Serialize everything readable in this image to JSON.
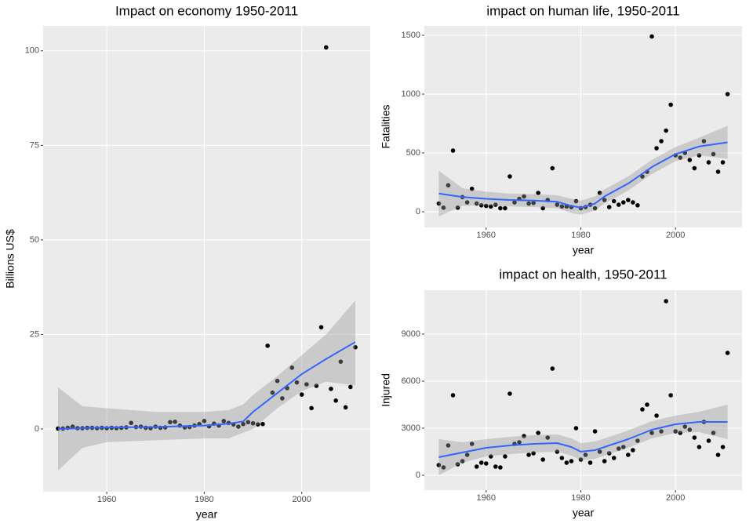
{
  "chart_data": [
    {
      "type": "scatter",
      "title": "Impact on economy 1950-2011",
      "x_label": "year",
      "y_label": "Billions US$",
      "xlim": [
        1946.95,
        2014.05
      ],
      "ylim": [
        -16.6,
        106.6
      ],
      "xticks": [
        1960,
        1980,
        2000
      ],
      "yticks": [
        0,
        25,
        50,
        75,
        100
      ],
      "grid": true,
      "color": "#000000",
      "x": [
        1950,
        1951,
        1952,
        1953,
        1954,
        1955,
        1956,
        1957,
        1958,
        1959,
        1960,
        1961,
        1962,
        1963,
        1964,
        1965,
        1966,
        1967,
        1968,
        1969,
        1970,
        1971,
        1972,
        1973,
        1974,
        1975,
        1976,
        1977,
        1978,
        1979,
        1980,
        1981,
        1982,
        1983,
        1984,
        1985,
        1986,
        1987,
        1988,
        1989,
        1990,
        1991,
        1992,
        1993,
        1994,
        1995,
        1996,
        1997,
        1998,
        1999,
        2000,
        2001,
        2002,
        2003,
        2004,
        2005,
        2006,
        2007,
        2008,
        2009,
        2010,
        2011
      ],
      "values": [
        0.1,
        0.1,
        0.3,
        0.6,
        0.2,
        0.2,
        0.3,
        0.3,
        0.2,
        0.3,
        0.2,
        0.3,
        0.2,
        0.3,
        0.4,
        1.6,
        0.5,
        0.6,
        0.3,
        0.2,
        0.6,
        0.3,
        0.4,
        1.8,
        1.9,
        0.9,
        0.4,
        0.5,
        0.9,
        1.3,
        2.1,
        0.7,
        1.4,
        0.9,
        2.1,
        1.6,
        1.2,
        0.6,
        1.3,
        1.8,
        1.5,
        1.2,
        1.3,
        22,
        9.6,
        12.7,
        8.1,
        10.8,
        16.2,
        12.3,
        9.1,
        11.8,
        5.5,
        11.4,
        26.9,
        100.9,
        10.6,
        7.5,
        17.8,
        5.7,
        11.1,
        21.6
      ],
      "trend": {
        "color": "#3366FF",
        "band_color": "#999999",
        "x": [
          1950,
          1955,
          1960,
          1970,
          1980,
          1985,
          1988,
          1990,
          1995,
          2000,
          2005,
          2011
        ],
        "values": [
          0,
          0.2,
          0.4,
          0.5,
          0.9,
          1.4,
          2,
          4.5,
          9.5,
          14.5,
          18.5,
          23
        ],
        "lower": [
          -11,
          -5,
          -3.5,
          -3,
          -2.5,
          -2.5,
          -1,
          0,
          5.5,
          10,
          12.5,
          11.5
        ],
        "upper": [
          11,
          6,
          5.5,
          4.5,
          4.5,
          5,
          6.5,
          9,
          14,
          19.5,
          25,
          34
        ]
      }
    },
    {
      "type": "scatter",
      "title": "impact on human life, 1950-2011",
      "x_label": "year",
      "y_label": "Fatalities",
      "xlim": [
        1946.95,
        2014.05
      ],
      "ylim": [
        -133,
        1580
      ],
      "xticks": [
        1960,
        1980,
        2000
      ],
      "yticks": [
        0,
        500,
        1000,
        1500
      ],
      "grid": true,
      "color": "#000000",
      "x": [
        1950,
        1951,
        1952,
        1953,
        1954,
        1955,
        1956,
        1957,
        1958,
        1959,
        1960,
        1961,
        1962,
        1963,
        1964,
        1965,
        1966,
        1967,
        1968,
        1969,
        1970,
        1971,
        1972,
        1973,
        1974,
        1975,
        1976,
        1977,
        1978,
        1979,
        1980,
        1981,
        1982,
        1983,
        1984,
        1985,
        1986,
        1987,
        1988,
        1989,
        1990,
        1991,
        1992,
        1993,
        1994,
        1995,
        1996,
        1997,
        1998,
        1999,
        2000,
        2001,
        2002,
        2003,
        2004,
        2005,
        2006,
        2007,
        2008,
        2009,
        2010,
        2011
      ],
      "values": [
        70,
        35,
        225,
        520,
        35,
        125,
        80,
        195,
        70,
        55,
        50,
        45,
        60,
        30,
        30,
        300,
        80,
        110,
        130,
        70,
        75,
        160,
        30,
        100,
        370,
        60,
        45,
        45,
        40,
        90,
        30,
        40,
        60,
        30,
        160,
        100,
        40,
        90,
        60,
        80,
        100,
        80,
        55,
        300,
        340,
        1490,
        540,
        600,
        690,
        910,
        480,
        460,
        500,
        440,
        370,
        480,
        600,
        420,
        490,
        340,
        420,
        1000
      ],
      "trend": {
        "color": "#3366FF",
        "band_color": "#999999",
        "x": [
          1950,
          1955,
          1960,
          1965,
          1970,
          1975,
          1978,
          1980,
          1983,
          1985,
          1990,
          1995,
          2000,
          2005,
          2011
        ],
        "values": [
          155,
          125,
          110,
          100,
          95,
          85,
          50,
          35,
          70,
          130,
          240,
          380,
          490,
          555,
          590
        ],
        "lower": [
          -40,
          50,
          55,
          45,
          40,
          30,
          -10,
          -25,
          10,
          70,
          180,
          320,
          430,
          480,
          450
        ],
        "upper": [
          350,
          200,
          170,
          155,
          150,
          140,
          110,
          95,
          130,
          190,
          300,
          440,
          550,
          630,
          730
        ]
      }
    },
    {
      "type": "scatter",
      "title": "impact on health, 1950-2011",
      "x_label": "year",
      "y_label": "Injured",
      "xlim": [
        1946.95,
        2014.05
      ],
      "ylim": [
        -950,
        11800
      ],
      "xticks": [
        1960,
        1980,
        2000
      ],
      "yticks": [
        0,
        3000,
        6000,
        9000
      ],
      "grid": true,
      "color": "#000000",
      "x": [
        1950,
        1951,
        1952,
        1953,
        1954,
        1955,
        1956,
        1957,
        1958,
        1959,
        1960,
        1961,
        1962,
        1963,
        1964,
        1965,
        1966,
        1967,
        1968,
        1969,
        1970,
        1971,
        1972,
        1973,
        1974,
        1975,
        1976,
        1977,
        1978,
        1979,
        1980,
        1981,
        1982,
        1983,
        1984,
        1985,
        1986,
        1987,
        1988,
        1989,
        1990,
        1991,
        1992,
        1993,
        1994,
        1995,
        1996,
        1997,
        1998,
        1999,
        2000,
        2001,
        2002,
        2003,
        2004,
        2005,
        2006,
        2007,
        2008,
        2009,
        2010,
        2011
      ],
      "values": [
        650,
        500,
        1900,
        5100,
        700,
        900,
        1300,
        2000,
        550,
        800,
        750,
        1200,
        550,
        500,
        1200,
        5200,
        2000,
        2100,
        2500,
        1300,
        1400,
        2700,
        1000,
        2400,
        6800,
        1500,
        1100,
        800,
        900,
        3000,
        1000,
        1300,
        800,
        2800,
        1500,
        900,
        1400,
        1100,
        1700,
        1800,
        1300,
        1600,
        2200,
        4200,
        4500,
        2700,
        3800,
        2800,
        11100,
        5100,
        2800,
        2700,
        3100,
        2900,
        2400,
        1800,
        3400,
        2200,
        2700,
        1300,
        1800,
        7800
      ],
      "trend": {
        "color": "#3366FF",
        "band_color": "#999999",
        "x": [
          1950,
          1955,
          1960,
          1965,
          1970,
          1975,
          1978,
          1980,
          1983,
          1985,
          1990,
          1995,
          2000,
          2005,
          2011
        ],
        "values": [
          1150,
          1450,
          1750,
          1900,
          2000,
          2050,
          1800,
          1500,
          1600,
          1800,
          2300,
          2900,
          3250,
          3400,
          3400
        ],
        "lower": [
          0,
          800,
          1200,
          1350,
          1450,
          1500,
          1250,
          950,
          1050,
          1250,
          1750,
          2350,
          2700,
          2750,
          2300
        ],
        "upper": [
          2300,
          2100,
          2300,
          2450,
          2550,
          2600,
          2350,
          2050,
          2150,
          2350,
          2850,
          3450,
          3800,
          4050,
          4500
        ]
      }
    }
  ]
}
